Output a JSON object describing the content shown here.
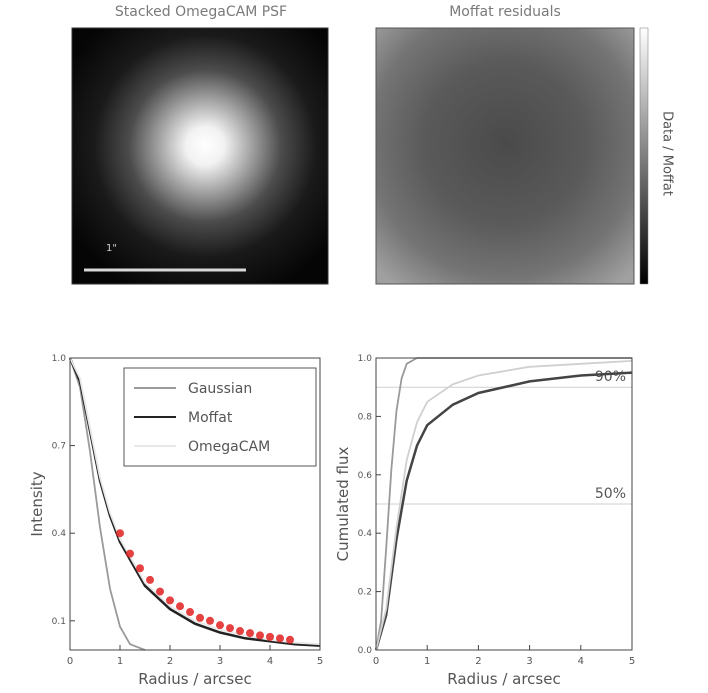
{
  "panels": {
    "psf_image": {
      "title": "Stacked OmegaCAM PSF",
      "scalebar_label": "1\""
    },
    "residual_image": {
      "title": "Moffat residuals",
      "colorbar_label": "Data / Moffat"
    }
  },
  "chart_data": [
    {
      "type": "line",
      "name": "radial_profile",
      "xlabel": "Radius / arcsec",
      "ylabel": "Intensity",
      "xlim": [
        0,
        5
      ],
      "ylim": [
        0,
        1
      ],
      "xticks": [
        0,
        1,
        2,
        3,
        4,
        5
      ],
      "yticks": [
        0.1,
        0.4,
        0.7,
        1.0
      ],
      "series": [
        {
          "name": "Gaussian",
          "color": "#9a9a9a",
          "x": [
            0,
            0.2,
            0.4,
            0.6,
            0.8,
            1.0,
            1.2,
            1.5
          ],
          "y": [
            1.0,
            0.9,
            0.68,
            0.42,
            0.21,
            0.08,
            0.02,
            0.0
          ]
        },
        {
          "name": "Moffat",
          "color": "#222222",
          "x": [
            0,
            0.2,
            0.4,
            0.6,
            0.8,
            1.0,
            1.5,
            2.0,
            2.5,
            3.0,
            3.5,
            4.0,
            4.5,
            5.0
          ],
          "y": [
            1.0,
            0.92,
            0.75,
            0.58,
            0.46,
            0.37,
            0.22,
            0.14,
            0.09,
            0.06,
            0.04,
            0.03,
            0.02,
            0.015
          ]
        },
        {
          "name": "OmegaCAM",
          "color": "#e8e8e8",
          "x": [
            0,
            0.2,
            0.4,
            0.6,
            0.8,
            1.0,
            1.5,
            2.0,
            2.5,
            3.0,
            3.5,
            4.0,
            4.5,
            5.0
          ],
          "y": [
            1.0,
            0.93,
            0.76,
            0.59,
            0.47,
            0.38,
            0.23,
            0.15,
            0.1,
            0.07,
            0.05,
            0.035,
            0.025,
            0.02
          ]
        }
      ],
      "scatter_series": {
        "color": "#e02020",
        "x": [
          1.0,
          1.2,
          1.4,
          1.6,
          1.8,
          2.0,
          2.2,
          2.4,
          2.6,
          2.8,
          3.0,
          3.2,
          3.4,
          3.6,
          3.8,
          4.0,
          4.2,
          4.4
        ],
        "y": [
          0.4,
          0.33,
          0.28,
          0.24,
          0.2,
          0.17,
          0.15,
          0.13,
          0.11,
          0.1,
          0.085,
          0.075,
          0.065,
          0.058,
          0.05,
          0.045,
          0.04,
          0.035
        ]
      },
      "legend": {
        "placement": "top-right",
        "entries": [
          "Gaussian",
          "Moffat",
          "OmegaCAM"
        ]
      }
    },
    {
      "type": "line",
      "name": "cumulative_flux",
      "xlabel": "Radius / arcsec",
      "ylabel": "Cumulated flux",
      "xlim": [
        0,
        5
      ],
      "ylim": [
        0,
        1
      ],
      "xticks": [
        0,
        1,
        2,
        3,
        4,
        5
      ],
      "yticks": [
        0.0,
        0.2,
        0.4,
        0.6,
        0.8,
        1.0
      ],
      "series": [
        {
          "name": "Gaussian",
          "color": "#9a9a9a",
          "x": [
            0,
            0.1,
            0.2,
            0.3,
            0.4,
            0.5,
            0.6,
            0.8,
            1.0,
            5.0
          ],
          "y": [
            0,
            0.1,
            0.35,
            0.62,
            0.82,
            0.93,
            0.98,
            1.0,
            1.0,
            1.0
          ]
        },
        {
          "name": "Moffat",
          "color": "#444444",
          "x": [
            0,
            0.2,
            0.4,
            0.6,
            0.8,
            1.0,
            1.5,
            2.0,
            3.0,
            4.0,
            5.0
          ],
          "y": [
            0,
            0.12,
            0.38,
            0.58,
            0.7,
            0.77,
            0.84,
            0.88,
            0.92,
            0.94,
            0.95
          ]
        },
        {
          "name": "OmegaCAM",
          "color": "#d0d0d0",
          "x": [
            0,
            0.2,
            0.4,
            0.6,
            0.8,
            1.0,
            1.5,
            2.0,
            3.0,
            4.0,
            5.0
          ],
          "y": [
            0,
            0.14,
            0.42,
            0.65,
            0.78,
            0.85,
            0.91,
            0.94,
            0.97,
            0.98,
            0.99
          ]
        }
      ],
      "reference_lines": [
        {
          "label": "90%",
          "y": 0.9
        },
        {
          "label": "50%",
          "y": 0.5
        }
      ]
    }
  ]
}
